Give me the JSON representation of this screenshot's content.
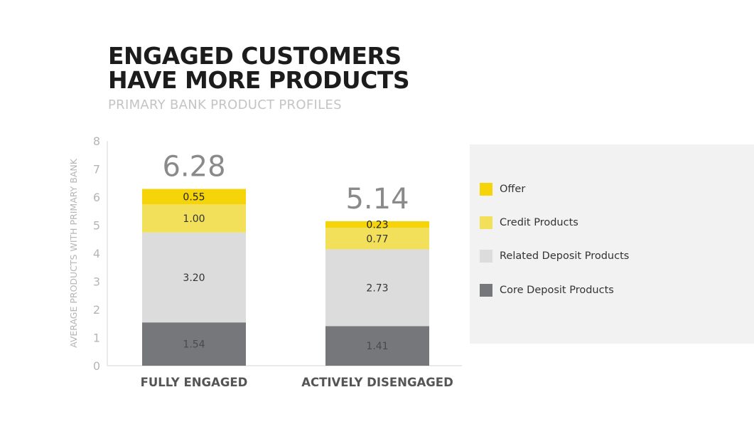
{
  "title_line1": "ENGAGED CUSTOMERS",
  "title_line2": "HAVE MORE PRODUCTS",
  "subtitle": "PRIMARY BANK PRODUCT PROFILES",
  "chart_data": {
    "type": "bar",
    "stacked": true,
    "categories": [
      "FULLY ENGAGED",
      "ACTIVELY DISENGAGED"
    ],
    "totals": [
      "6.28",
      "5.14"
    ],
    "series": [
      {
        "name": "Core Deposit Products",
        "color": "#76777a",
        "label_color": "#4a4a4a",
        "values": [
          1.54,
          1.41
        ]
      },
      {
        "name": "Related Deposit Products",
        "color": "#dcdcdc",
        "label_color": "#333333",
        "values": [
          3.2,
          2.73
        ]
      },
      {
        "name": "Credit Products",
        "color": "#f2e05a",
        "label_color": "#333333",
        "values": [
          1.0,
          0.77
        ]
      },
      {
        "name": "Offer",
        "color": "#f5d40a",
        "label_color": "#222222",
        "values": [
          0.55,
          0.23
        ]
      }
    ],
    "ylabel": "AVERAGE PRODUCTS WITH PRIMARY BANK",
    "ylim": [
      0,
      8
    ],
    "yticks": [
      0,
      1,
      2,
      3,
      4,
      5,
      6,
      7,
      8
    ],
    "grid": false,
    "legend_position": "right"
  },
  "legend": [
    {
      "label": "Offer",
      "color": "#f5d40a"
    },
    {
      "label": "Credit Products",
      "color": "#f2e05a"
    },
    {
      "label": "Related Deposit Products",
      "color": "#dcdcdc"
    },
    {
      "label": "Core Deposit Products",
      "color": "#76777a"
    }
  ]
}
